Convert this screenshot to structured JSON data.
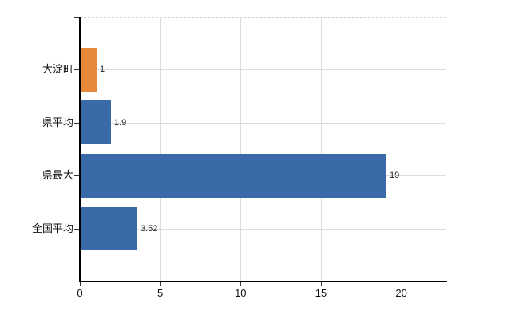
{
  "chart_data": {
    "type": "bar",
    "orientation": "horizontal",
    "categories": [
      "大淀町",
      "県平均",
      "県最大",
      "全国平均"
    ],
    "values": [
      1,
      1.9,
      19,
      3.52
    ],
    "value_labels": [
      "1",
      "1.9",
      "19",
      "3.52"
    ],
    "bar_colors": [
      "#e8893a",
      "#3a6ba8",
      "#3a6ba8",
      "#3a6ba8"
    ],
    "x_ticks": [
      0,
      5,
      10,
      15,
      20
    ],
    "x_tick_labels": [
      "0",
      "5",
      "10",
      "15",
      "20"
    ],
    "xlim": [
      0,
      22.8
    ],
    "grid": true,
    "legend": false,
    "gridline_color": "#dcdcdc",
    "axis_color": "#000000"
  }
}
